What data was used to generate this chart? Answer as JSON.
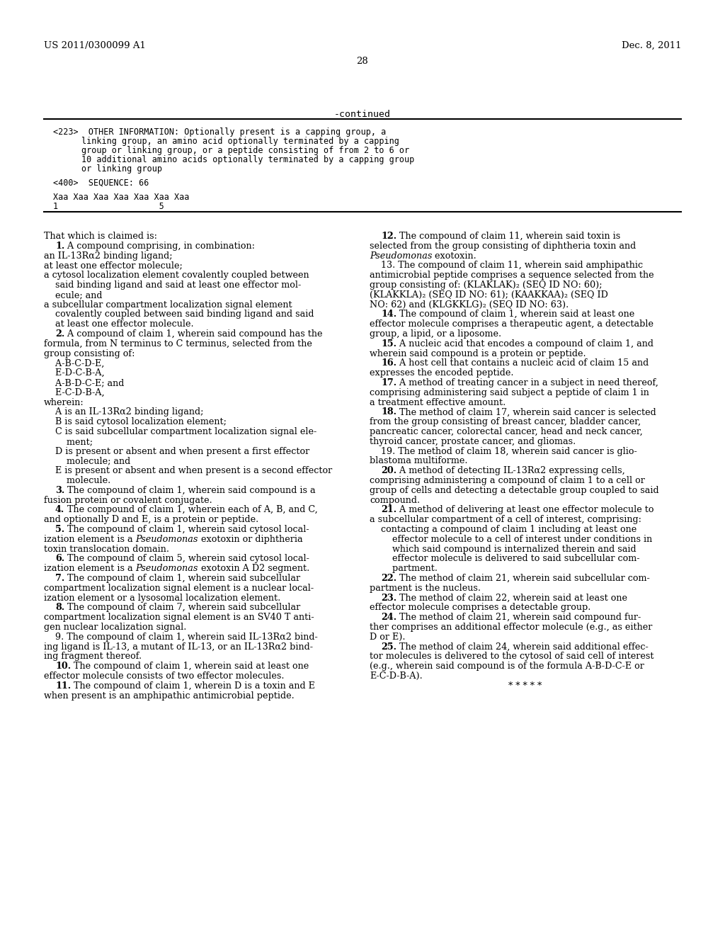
{
  "bg_color": "#ffffff",
  "header_left": "US 2011/0300099 A1",
  "header_right": "Dec. 8, 2011",
  "page_number": "28",
  "continued_label": "-continued",
  "sequence_box": {
    "tag223": "<223>  OTHER INFORMATION: Optionally present is a capping group, a\n        linking group, an amino acid optionally terminated by a capping\n        group or linking group, or a peptide consisting of from 2 to 6 or\n        10 additional amino acids optionally terminated by a capping group\n        or linking group",
    "tag400": "<400>  SEQUENCE: 66",
    "sequence_line": "Xaa Xaa Xaa Xaa Xaa Xaa Xaa",
    "sequence_numbers": "1                    5"
  },
  "left_column_text": [
    {
      "text": "That which is claimed is:",
      "bold": false,
      "indent": 0,
      "size": 9.5
    },
    {
      "text": "    1. A compound comprising, in combination:",
      "bold": false,
      "indent": 0,
      "size": 9.5
    },
    {
      "text": "an IL-13Rα2 binding ligand;",
      "bold": false,
      "indent": 0,
      "size": 9.5
    },
    {
      "text": "at least one effector molecule;",
      "bold": false,
      "indent": 0,
      "size": 9.5
    },
    {
      "text": "a cytosol localization element covalently coupled between said binding ligand and said at least one effector mol-ecule; and",
      "bold": false,
      "indent": 0,
      "size": 9.5
    },
    {
      "text": "a subcellular compartment localization signal element covalently coupled between said binding ligand and said at least one effector molecule.",
      "bold": false,
      "indent": 0,
      "size": 9.5
    },
    {
      "text": "    2. A compound of claim 1, wherein said compound has the formula, from N terminus to C terminus, selected from the group consisting of:",
      "bold": false,
      "indent": 0,
      "size": 9.5
    },
    {
      "text": "    A-B-C-D-E,",
      "bold": false,
      "indent": 0,
      "size": 9.5
    },
    {
      "text": "    E-D-C-B-A,",
      "bold": false,
      "indent": 0,
      "size": 9.5
    },
    {
      "text": "    A-B-D-C-E; and",
      "bold": false,
      "indent": 0,
      "size": 9.5
    },
    {
      "text": "    E-C-D-B-A,",
      "bold": false,
      "indent": 0,
      "size": 9.5
    },
    {
      "text": "wherein:",
      "bold": false,
      "indent": 0,
      "size": 9.5
    },
    {
      "text": "    A is an IL-13Rα2 binding ligand;",
      "bold": false,
      "indent": 0,
      "size": 9.5
    },
    {
      "text": "    B is said cytosol localization element;",
      "bold": false,
      "indent": 0,
      "size": 9.5
    },
    {
      "text": "    C is said subcellular compartment localization signal ele-ment;",
      "bold": false,
      "indent": 0,
      "size": 9.5
    },
    {
      "text": "    D is present or absent and when present a first effector molecule; and",
      "bold": false,
      "indent": 0,
      "size": 9.5
    },
    {
      "text": "    E is present or absent and when present is a second effector molecule.",
      "bold": false,
      "indent": 0,
      "size": 9.5
    },
    {
      "text": "    3. The compound of claim 1, wherein said compound is a fusion protein or covalent conjugate.",
      "bold": false,
      "indent": 0,
      "size": 9.5
    },
    {
      "text": "    4. The compound of claim 1, wherein each of A, B, and C, and optionally D and E, is a protein or peptide.",
      "bold": false,
      "indent": 0,
      "size": 9.5
    },
    {
      "text": "    5. The compound of claim 1, wherein said cytosol localization element is a Pseudomonas exotoxin or diphtheria toxin translocation domain.",
      "bold": false,
      "indent": 0,
      "size": 9.5
    },
    {
      "text": "    6. The compound of claim 5, wherein said cytosol localization element is a Pseudomonas exotoxin A D2 segment.",
      "bold": false,
      "indent": 0,
      "size": 9.5
    },
    {
      "text": "    7. The compound of claim 1, wherein said subcellular compartment localization signal element is a nuclear localization element or a lysosomal localization element.",
      "bold": false,
      "indent": 0,
      "size": 9.5
    },
    {
      "text": "    8. The compound of claim 7, wherein said subcellular compartment localization signal element is an SV40 T antigen nuclear localization signal.",
      "bold": false,
      "indent": 0,
      "size": 9.5
    },
    {
      "text": "    9. The compound of claim 1, wherein said IL-13Rα2 binding ligand is IL-13, a mutant of IL-13, or an IL-13Rα2 binding fragment thereof.",
      "bold": false,
      "indent": 0,
      "size": 9.5
    },
    {
      "text": "    10. The compound of claim 1, wherein said at least one effector molecule consists of two effector molecules.",
      "bold": false,
      "indent": 0,
      "size": 9.5
    },
    {
      "text": "    11. The compound of claim 1, wherein D is a toxin and E when present is an amphipathic antimicrobial peptide.",
      "bold": false,
      "indent": 0,
      "size": 9.5
    }
  ],
  "right_column_text": [
    {
      "text": "    12. The compound of claim 11, wherein said toxin is selected from the group consisting of diphtheria toxin and Pseudomonas exotoxin.",
      "bold": false,
      "indent": 0,
      "size": 9.5
    },
    {
      "text": "    13. The compound of claim 11, wherein said amphipathic antimicrobial peptide comprises a sequence selected from the group consisting of: (KLAKLAK)₂ (SEQ ID NO: 60); (KLAKKLA)₂ (SEQ ID NO: 61); (KAAKKAA)₂ (SEQ ID NO: 62) and (KLGKKLG)₂ (SEQ ID NO: 63).",
      "bold": false,
      "indent": 0,
      "size": 9.5
    },
    {
      "text": "    14. The compound of claim 1, wherein said at least one effector molecule comprises a therapeutic agent, a detectable group, a lipid, or a liposome.",
      "bold": false,
      "indent": 0,
      "size": 9.5
    },
    {
      "text": "    15. A nucleic acid that encodes a compound of claim 1, and wherein said compound is a protein or peptide.",
      "bold": false,
      "indent": 0,
      "size": 9.5
    },
    {
      "text": "    16. A host cell that contains a nucleic acid of claim 15 and expresses the encoded peptide.",
      "bold": false,
      "indent": 0,
      "size": 9.5
    },
    {
      "text": "    17. A method of treating cancer in a subject in need thereof, comprising administering said subject a peptide of claim 1 in a treatment effective amount.",
      "bold": false,
      "indent": 0,
      "size": 9.5
    },
    {
      "text": "    18. The method of claim 17, wherein said cancer is selected from the group consisting of breast cancer, bladder cancer, pancreatic cancer, colorectal cancer, head and neck cancer, thyroid cancer, prostate cancer, and gliomas.",
      "bold": false,
      "indent": 0,
      "size": 9.5
    },
    {
      "text": "    19. The method of claim 18, wherein said cancer is glioblastoma multiforme.",
      "bold": false,
      "indent": 0,
      "size": 9.5
    },
    {
      "text": "    20. A method of detecting IL-13Rα2 expressing cells, comprising administering a compound of claim 1 to a cell or group of cells and detecting a detectable group coupled to said compound.",
      "bold": false,
      "indent": 0,
      "size": 9.5
    },
    {
      "text": "    21. A method of delivering at least one effector molecule to a subcellular compartment of a cell of interest, comprising:",
      "bold": false,
      "indent": 0,
      "size": 9.5
    },
    {
      "text": "    contacting a compound of claim 1 including at least one effector molecule to a cell of interest under conditions in which said compound is internalized therein and said effector molecule is delivered to said subcellular compartment.",
      "bold": false,
      "indent": 0,
      "size": 9.5
    },
    {
      "text": "    22. The method of claim 21, wherein said subcellular compartment is the nucleus.",
      "bold": false,
      "indent": 0,
      "size": 9.5
    },
    {
      "text": "    23. The method of claim 22, wherein said at least one effector molecule comprises a detectable group.",
      "bold": false,
      "indent": 0,
      "size": 9.5
    },
    {
      "text": "    24. The method of claim 21, wherein said compound further comprises an additional effector molecule (e.g., as either D or E).",
      "bold": false,
      "indent": 0,
      "size": 9.5
    },
    {
      "text": "    25. The method of claim 24, wherein said additional effector molecules is delivered to the cytosol of said cell of interest (e.g., wherein said compound is of the formula A-B-D-C-E or E-C-D-B-A).",
      "bold": false,
      "indent": 0,
      "size": 9.5
    },
    {
      "text": "* * * * *",
      "bold": false,
      "indent": 0,
      "size": 9.5,
      "centered": true
    }
  ]
}
